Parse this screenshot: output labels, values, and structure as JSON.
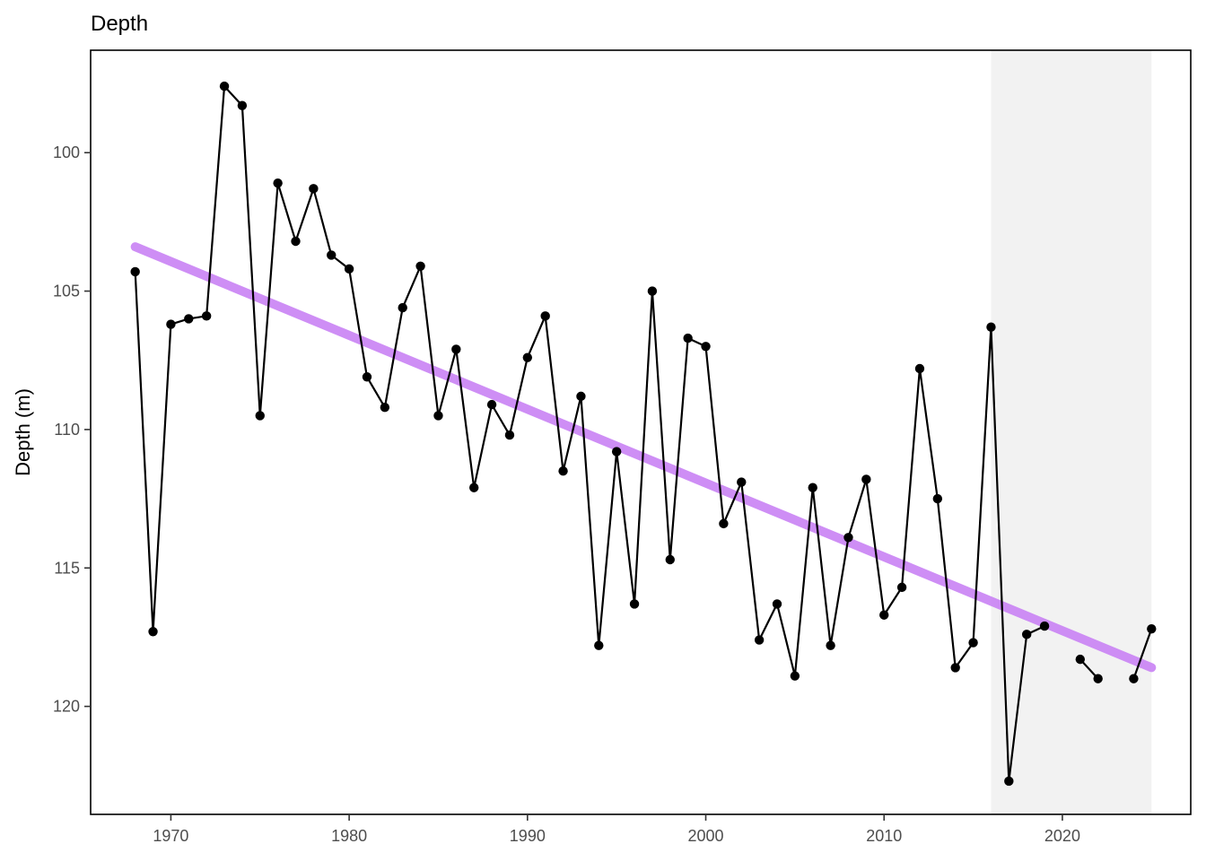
{
  "chart_data": {
    "type": "line",
    "title": "Depth",
    "xlabel": "",
    "ylabel": "Depth (m)",
    "xlim": [
      1965.5,
      2027.2
    ],
    "ylim": [
      96.3,
      123.9
    ],
    "y_reversed": true,
    "grid": false,
    "legend": "none",
    "x_ticks": [
      1970,
      1980,
      1990,
      2000,
      2010,
      2020
    ],
    "x_tick_labels": [
      "1970",
      "1980",
      "1990",
      "2000",
      "2010",
      "2020"
    ],
    "y_ticks": [
      100,
      105,
      110,
      115,
      120
    ],
    "y_tick_labels": [
      "100",
      "105",
      "110",
      "115",
      "120"
    ],
    "shaded_region": {
      "x": [
        2016,
        2025
      ],
      "color": "#f2f2f2"
    },
    "series": [
      {
        "type": "line+points",
        "color": "#000000",
        "x": [
          1968,
          1969,
          1970,
          1971,
          1972,
          1973,
          1974,
          1975,
          1976,
          1977,
          1978,
          1979,
          1980,
          1981,
          1982,
          1983,
          1984,
          1985,
          1986,
          1987,
          1988,
          1989,
          1990,
          1991,
          1992,
          1993,
          1994,
          1995,
          1996,
          1997,
          1998,
          1999,
          2000,
          2001,
          2002,
          2003,
          2004,
          2005,
          2006,
          2007,
          2008,
          2009,
          2010,
          2011,
          2012,
          2013,
          2014,
          2015,
          2016,
          2017,
          2018,
          2019,
          2020,
          2021,
          2022,
          2023,
          2024,
          2025
        ],
        "y": [
          104.3,
          117.3,
          106.2,
          106.0,
          105.9,
          97.6,
          98.3,
          109.5,
          101.1,
          103.2,
          101.3,
          103.7,
          104.2,
          108.1,
          109.2,
          105.6,
          104.1,
          109.5,
          107.1,
          112.1,
          109.1,
          110.2,
          107.4,
          105.9,
          111.5,
          108.8,
          117.8,
          110.8,
          116.3,
          105.0,
          114.7,
          106.7,
          107.0,
          113.4,
          111.9,
          117.6,
          116.3,
          118.9,
          112.1,
          117.8,
          113.9,
          111.8,
          116.7,
          115.7,
          107.8,
          112.5,
          118.6,
          117.7,
          106.3,
          122.7,
          117.4,
          117.1,
          null,
          118.3,
          119.0,
          null,
          119.0,
          117.2
        ]
      },
      {
        "type": "trend",
        "color": "#cc88f5",
        "x": [
          1968,
          2025
        ],
        "y": [
          103.4,
          118.6
        ]
      }
    ]
  }
}
